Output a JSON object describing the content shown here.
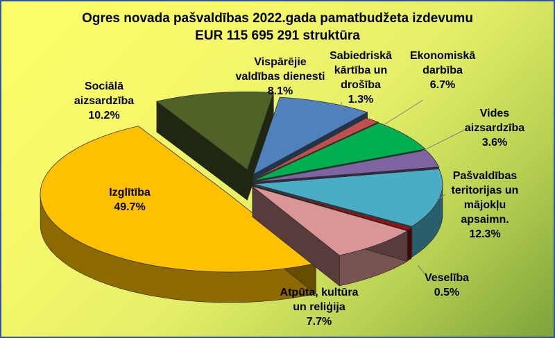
{
  "chart_data": {
    "type": "pie",
    "title_lines": [
      "Ogres novada pašvaldības 2022.gada pamatbudžeta izdevumu",
      "EUR 115 695 291 struktūra"
    ],
    "slices": [
      {
        "label_lines": [
          "Vispārējie",
          "valdības dienesti"
        ],
        "value": 8.1,
        "value_text": "8.1%",
        "color": "#4f81bd"
      },
      {
        "label_lines": [
          "Sabiedriskā",
          "kārtība un",
          "drošība"
        ],
        "value": 1.3,
        "value_text": "1.3%",
        "color": "#c0504d"
      },
      {
        "label_lines": [
          "Ekonomiskā",
          "darbība"
        ],
        "value": 6.7,
        "value_text": "6.7%",
        "color": "#00b050"
      },
      {
        "label_lines": [
          "Vides",
          "aizsardzība"
        ],
        "value": 3.6,
        "value_text": "3.6%",
        "color": "#8064a2"
      },
      {
        "label_lines": [
          "Pašvaldības",
          "teritorijas un",
          "mājokļu",
          "apsaimn."
        ],
        "value": 12.3,
        "value_text": "12.3%",
        "color": "#4bacc6"
      },
      {
        "label_lines": [
          "Veselība"
        ],
        "value": 0.5,
        "value_text": "0.5%",
        "color": "#c00000"
      },
      {
        "label_lines": [
          "Atpūta, kultūra",
          "un reliģija"
        ],
        "value": 7.7,
        "value_text": "7.7%",
        "color": "#da9694"
      },
      {
        "label_lines": [
          "Izglītība"
        ],
        "value": 49.7,
        "value_text": "49.7%",
        "color": "#ffc000"
      },
      {
        "label_lines": [
          "Sociālā",
          "aizsardzība"
        ],
        "value": 10.2,
        "value_text": "10.2%",
        "color": "#4f6228"
      }
    ]
  }
}
